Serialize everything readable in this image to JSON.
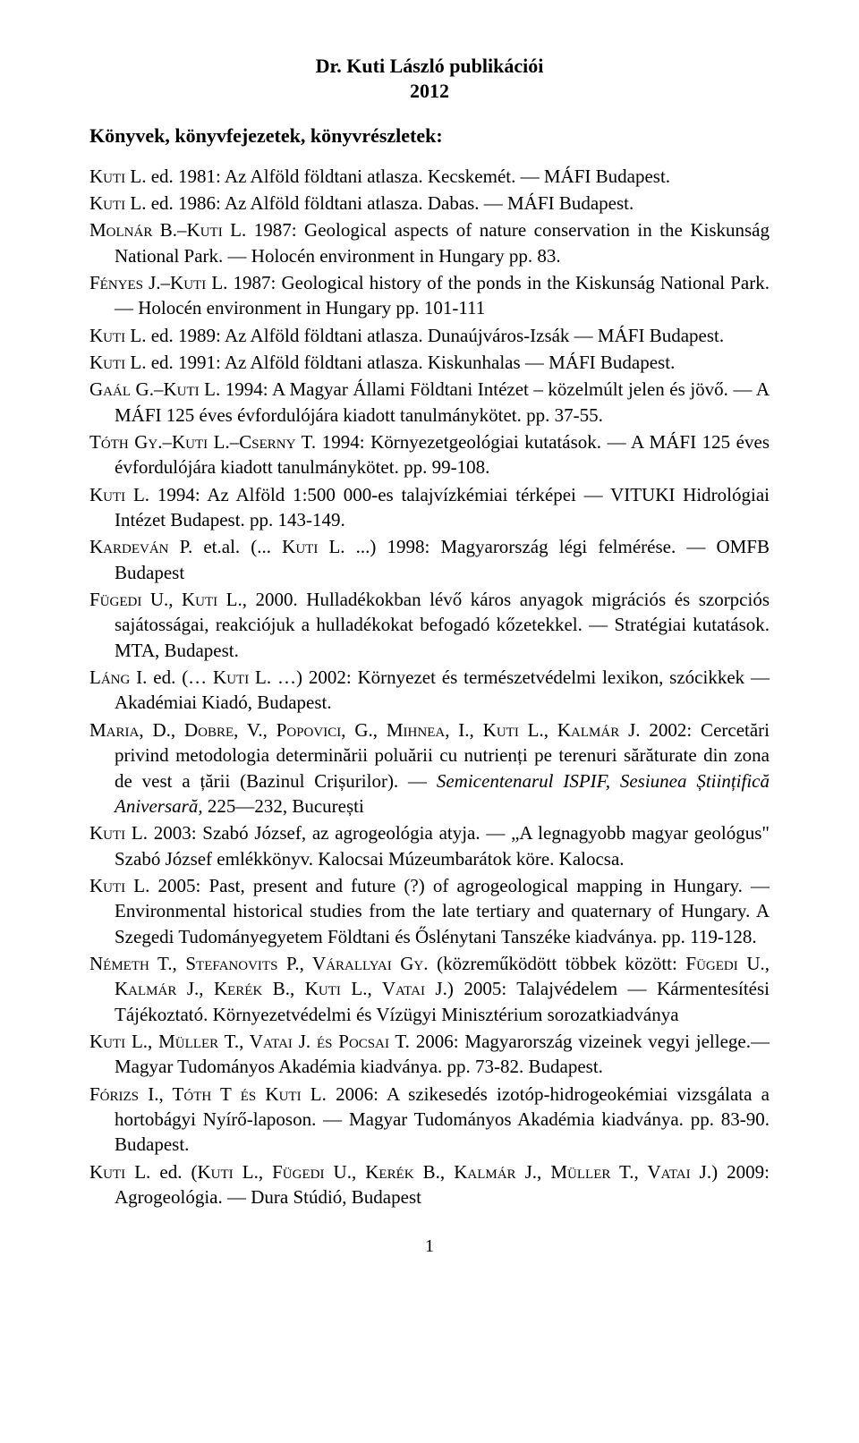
{
  "title": "Dr. Kuti László publikációi",
  "year": "2012",
  "section_heading": "Könyvek, könyvfejezetek, könyvrészletek:",
  "page_number": "1",
  "entries": [
    {
      "html": "<span class='sc'>Kuti L.</span> ed. 1981: Az Alföld földtani atlasza. Kecskemét. — MÁFI Budapest."
    },
    {
      "html": "<span class='sc'>Kuti L.</span> ed. 1986: Az Alföld földtani atlasza. Dabas. — MÁFI Budapest."
    },
    {
      "html": "<span class='sc'>Molnár B.–Kuti L.</span> 1987: Geological aspects of nature conservation in the Kiskunság National Park. — Holocén environment in Hungary pp. 83."
    },
    {
      "html": "<span class='sc'>Fényes J.–Kuti L.</span> 1987: Geological history of the ponds in the Kiskunság National Park. — Holocén environment in Hungary pp. 101-111"
    },
    {
      "html": "<span class='sc'>Kuti L.</span> ed. 1989: Az Alföld földtani atlasza. Dunaújváros-Izsák — MÁFI Budapest."
    },
    {
      "html": "<span class='sc'>Kuti L.</span> ed. 1991: Az Alföld földtani atlasza. Kiskunhalas — MÁFI Budapest."
    },
    {
      "html": "<span class='sc'>Gaál G.–Kuti L.</span> 1994: A Magyar Állami Földtani Intézet – közelmúlt jelen és jövő. — A MÁFI 125 éves évfordulójára kiadott tanulmánykötet. pp. 37-55."
    },
    {
      "html": "<span class='sc'>Tóth Gy.–Kuti L.–Cserny T.</span> 1994: Környezetgeológiai kutatások. — A MÁFI 125 éves évfordulójára kiadott tanulmánykötet. pp. 99-108."
    },
    {
      "html": "<span class='sc'>Kuti L.</span> 1994: Az Alföld 1:500 000-es talajvízkémiai térképei — VITUKI Hidrológiai Intézet Budapest. pp. 143-149."
    },
    {
      "html": "<span class='sc'>Kardeván P.</span> et.al. (... <span class='sc'>Kuti L.</span> ...) 1998: Magyarország légi felmérése. — OMFB Budapest"
    },
    {
      "html": "<span class='sc'>Fügedi U., Kuti L.,</span> 2000. Hulladékokban lévő káros anyagok migrációs és szorpciós sajátosságai, reakciójuk a hulladékokat befogadó kőzetekkel. — Stratégiai kutatások. MTA, Budapest."
    },
    {
      "html": "<span class='sc'>Láng</span> I. ed. (… <span class='sc'>Kuti L.</span> …) 2002: Környezet és természetvédelmi lexikon, szócikkek — Akadémiai Kiadó, Budapest."
    },
    {
      "html": "<span class='sc'>Maria, D., Dobre, V., Popovici, G., Mihnea, I., Kuti L., Kalmár J.</span> 2002: Cercetări privind metodologia determinării poluării cu nutrienți pe terenuri sărăturate din zona de vest a țării (Bazinul Crișurilor). — <span class='italic'>Semicentenarul ISPIF, Sesiunea Științifică Aniversară,</span> 225—232, București"
    },
    {
      "html": "<span class='sc'>Kuti L.</span> 2003: Szabó József, az agrogeológia atyja. — „A legnagyobb magyar geológus\" Szabó József emlékkönyv. Kalocsai Múzeumbarátok köre. Kalocsa."
    },
    {
      "html": "<span class='sc'>Kuti L.</span> 2005: Past, present and future (?) of agrogeological mapping in Hungary. — Environmental historical studies from the late tertiary and quaternary of Hungary. A Szegedi Tudományegyetem Földtani és Őslénytani Tanszéke kiadványa. pp. 119-128."
    },
    {
      "html": "<span class='sc'>Németh T., Stefanovits P., Várallyai Gy.</span> (közreműködött többek között: <span class='sc'>Fügedi U., Kalmár J., Kerék B., Kuti L., Vatai J.</span>) 2005: Talajvédelem — Kármentesítési Tájékoztató. Környezetvédelmi és Vízügyi Minisztérium sorozatkiadványa"
    },
    {
      "html": "<span class='sc'>Kuti L., Müller T., Vatai J. és Pocsai T.</span> 2006: Magyarország vizeinek vegyi jellege.— Magyar Tudományos Akadémia kiadványa. pp. 73-82. Budapest."
    },
    {
      "html": "<span class='sc'>Fórizs I., Tóth T és Kuti L.</span> 2006: A szikesedés izotóp-hidrogeokémiai vizsgálata a hortobágyi Nyírő-laposon. — Magyar Tudományos Akadémia kiadványa. pp. 83-90. Budapest."
    },
    {
      "html": "<span class='sc'>Kuti L.</span> ed. (<span class='sc'>Kuti L., Fügedi U., Kerék B., Kalmár J., Müller T., Vatai J.</span>) 2009: Agrogeológia. — Dura Stúdió, Budapest"
    }
  ]
}
